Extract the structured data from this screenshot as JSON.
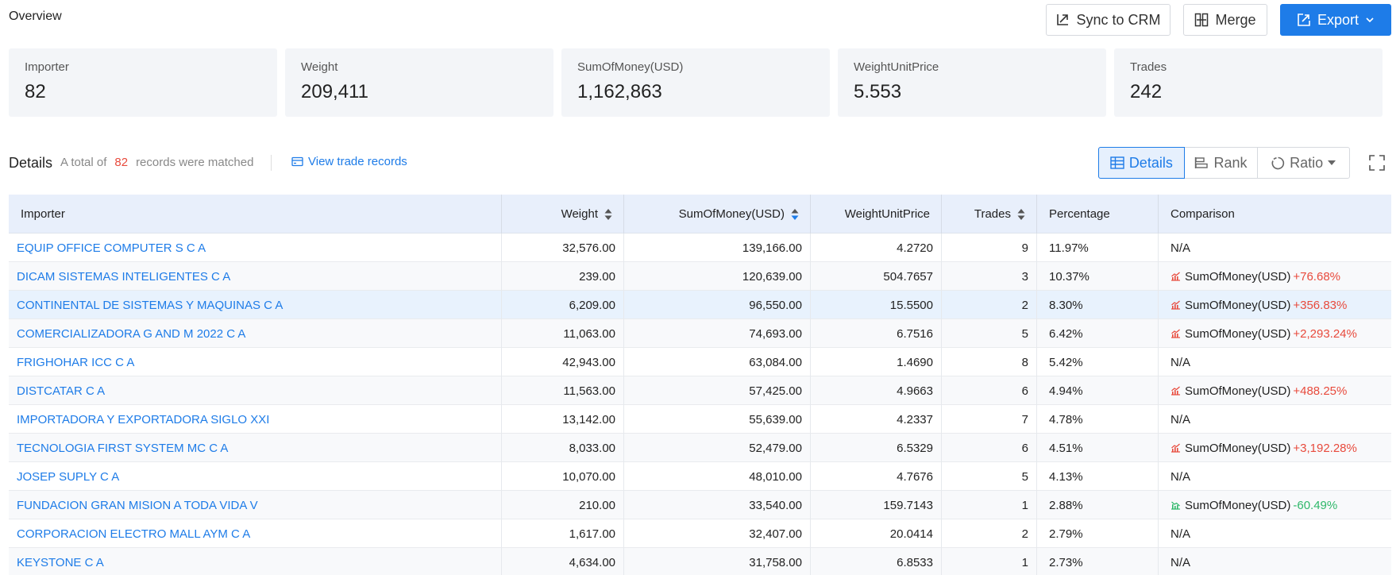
{
  "header": {
    "title": "Overview",
    "sync_label": "Sync to CRM",
    "merge_label": "Merge",
    "export_label": "Export"
  },
  "stats": [
    {
      "label": "Importer",
      "value": "82"
    },
    {
      "label": "Weight",
      "value": "209,411"
    },
    {
      "label": "SumOfMoney(USD)",
      "value": "1,162,863"
    },
    {
      "label": "WeightUnitPrice",
      "value": "5.553"
    },
    {
      "label": "Trades",
      "value": "242"
    }
  ],
  "details": {
    "title": "Details",
    "prefix": "A total of",
    "count": "82",
    "suffix": "records were matched",
    "view_link": "View trade records",
    "tabs": {
      "details": "Details",
      "rank": "Rank",
      "ratio": "Ratio"
    }
  },
  "colors": {
    "accent": "#1e7ce8",
    "up": "#e84a3c",
    "down": "#2fb86a",
    "header_bg": "#e8effb"
  },
  "table": {
    "columns": [
      "Importer",
      "Weight",
      "SumOfMoney(USD)",
      "WeightUnitPrice",
      "Trades",
      "Percentage",
      "Comparison"
    ],
    "rows": [
      {
        "importer": "EQUIP OFFICE COMPUTER S C A",
        "weight": "32,576.00",
        "sum": "139,166.00",
        "wup": "4.2720",
        "trades": "9",
        "pct": "11.97%",
        "cmp_label": "N/A",
        "cmp_value": "",
        "cmp_dir": "none"
      },
      {
        "importer": "DICAM SISTEMAS INTELIGENTES C A",
        "weight": "239.00",
        "sum": "120,639.00",
        "wup": "504.7657",
        "trades": "3",
        "pct": "10.37%",
        "cmp_label": "SumOfMoney(USD)",
        "cmp_value": "+76.68%",
        "cmp_dir": "up"
      },
      {
        "importer": "CONTINENTAL DE SISTEMAS Y MAQUINAS C A",
        "weight": "6,209.00",
        "sum": "96,550.00",
        "wup": "15.5500",
        "trades": "2",
        "pct": "8.30%",
        "cmp_label": "SumOfMoney(USD)",
        "cmp_value": "+356.83%",
        "cmp_dir": "up"
      },
      {
        "importer": "COMERCIALIZADORA G AND M 2022 C A",
        "weight": "11,063.00",
        "sum": "74,693.00",
        "wup": "6.7516",
        "trades": "5",
        "pct": "6.42%",
        "cmp_label": "SumOfMoney(USD)",
        "cmp_value": "+2,293.24%",
        "cmp_dir": "up"
      },
      {
        "importer": "FRIGHOHAR ICC C A",
        "weight": "42,943.00",
        "sum": "63,084.00",
        "wup": "1.4690",
        "trades": "8",
        "pct": "5.42%",
        "cmp_label": "N/A",
        "cmp_value": "",
        "cmp_dir": "none"
      },
      {
        "importer": "DISTCATAR C A",
        "weight": "11,563.00",
        "sum": "57,425.00",
        "wup": "4.9663",
        "trades": "6",
        "pct": "4.94%",
        "cmp_label": "SumOfMoney(USD)",
        "cmp_value": "+488.25%",
        "cmp_dir": "up"
      },
      {
        "importer": "IMPORTADORA Y EXPORTADORA SIGLO XXI",
        "weight": "13,142.00",
        "sum": "55,639.00",
        "wup": "4.2337",
        "trades": "7",
        "pct": "4.78%",
        "cmp_label": "N/A",
        "cmp_value": "",
        "cmp_dir": "none"
      },
      {
        "importer": "TECNOLOGIA FIRST SYSTEM MC C A",
        "weight": "8,033.00",
        "sum": "52,479.00",
        "wup": "6.5329",
        "trades": "6",
        "pct": "4.51%",
        "cmp_label": "SumOfMoney(USD)",
        "cmp_value": "+3,192.28%",
        "cmp_dir": "up"
      },
      {
        "importer": "JOSEP SUPLY C A",
        "weight": "10,070.00",
        "sum": "48,010.00",
        "wup": "4.7676",
        "trades": "5",
        "pct": "4.13%",
        "cmp_label": "N/A",
        "cmp_value": "",
        "cmp_dir": "none"
      },
      {
        "importer": "FUNDACION GRAN MISION A TODA VIDA V",
        "weight": "210.00",
        "sum": "33,540.00",
        "wup": "159.7143",
        "trades": "1",
        "pct": "2.88%",
        "cmp_label": "SumOfMoney(USD)",
        "cmp_value": "-60.49%",
        "cmp_dir": "down"
      },
      {
        "importer": "CORPORACION ELECTRO MALL AYM C A",
        "weight": "1,617.00",
        "sum": "32,407.00",
        "wup": "20.0414",
        "trades": "2",
        "pct": "2.79%",
        "cmp_label": "N/A",
        "cmp_value": "",
        "cmp_dir": "none"
      },
      {
        "importer": "KEYSTONE C A",
        "weight": "4,634.00",
        "sum": "31,758.00",
        "wup": "6.8533",
        "trades": "1",
        "pct": "2.73%",
        "cmp_label": "N/A",
        "cmp_value": "",
        "cmp_dir": "none"
      }
    ]
  }
}
